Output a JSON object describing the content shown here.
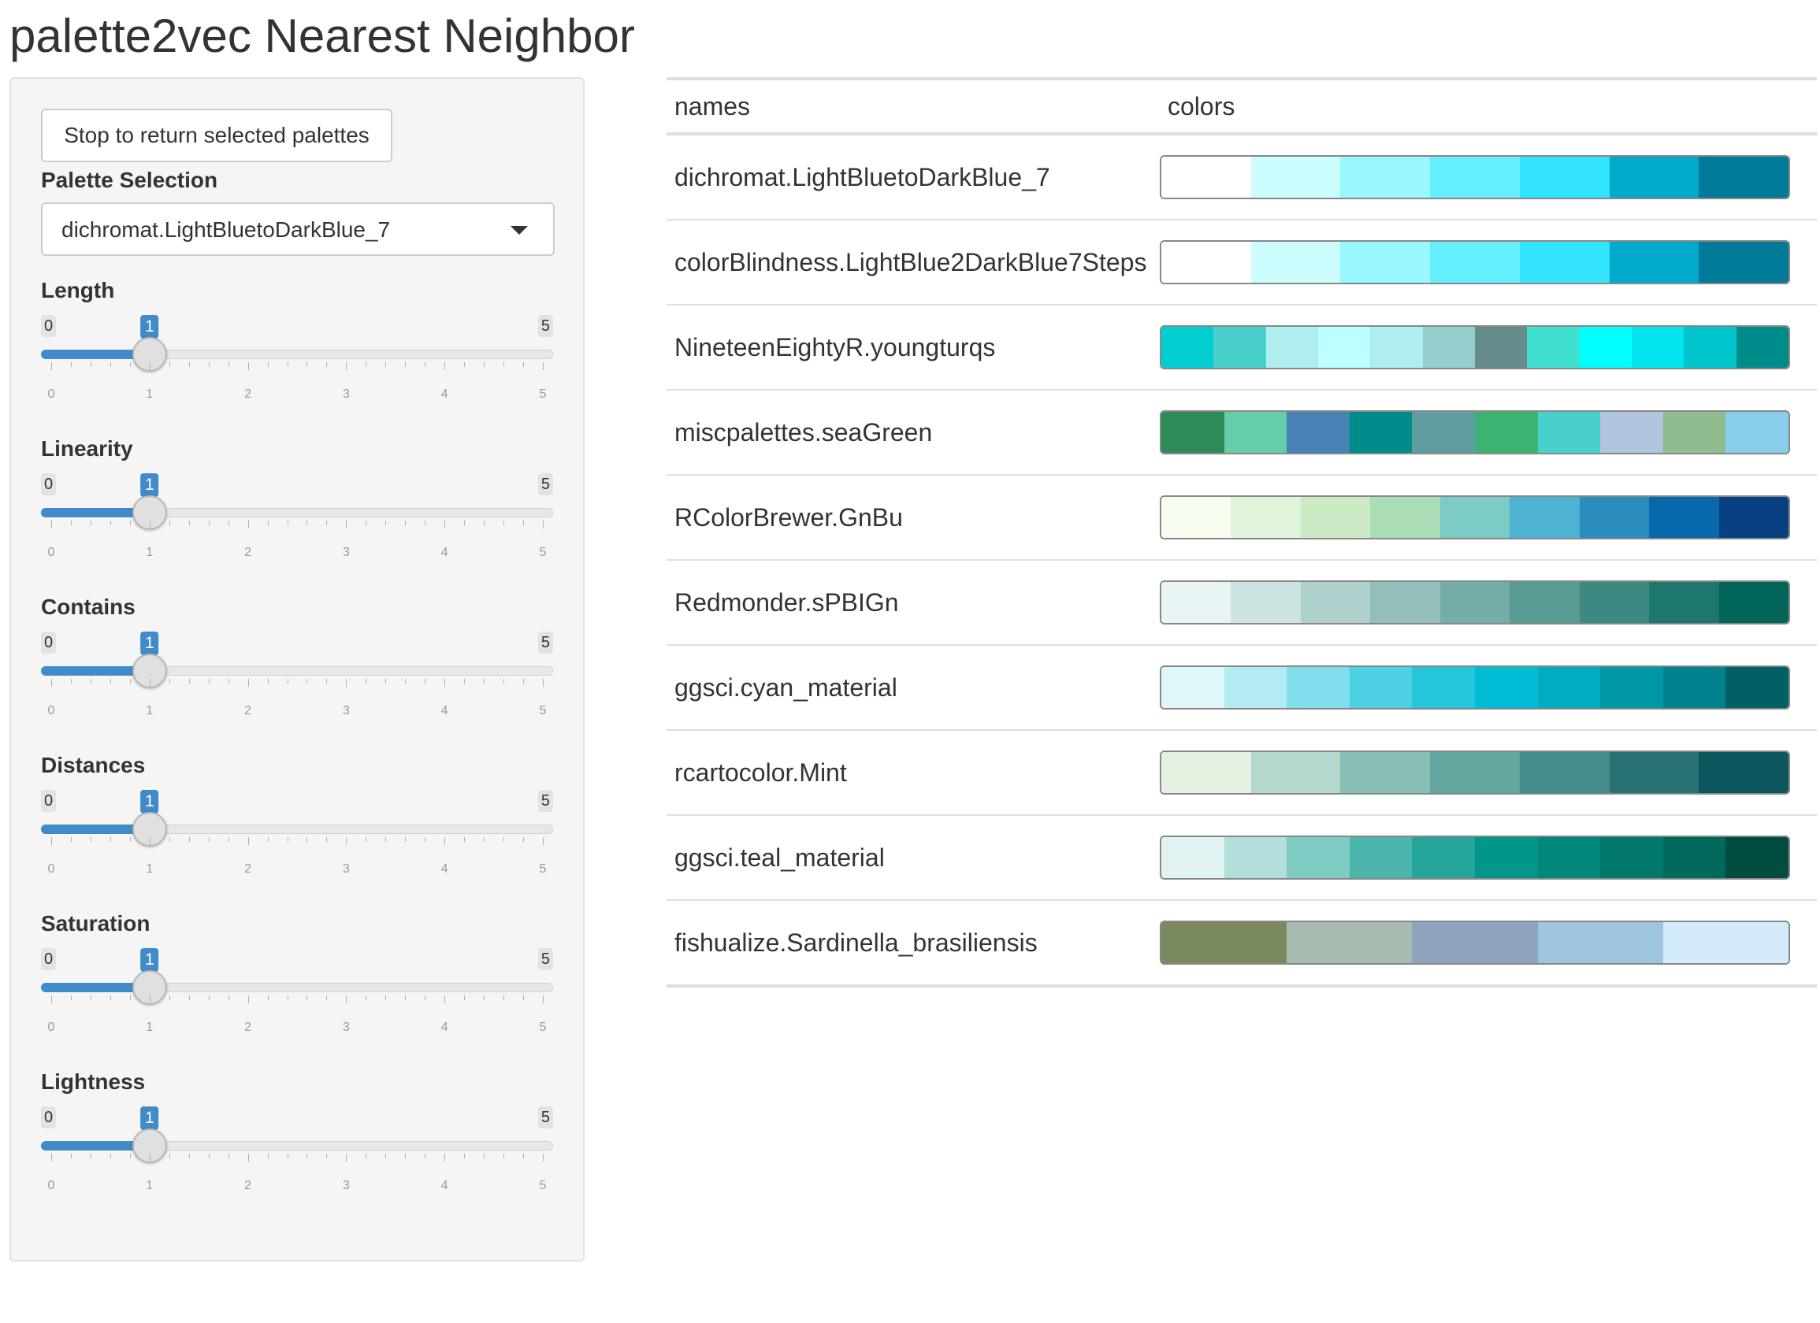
{
  "title": "palette2vec Nearest Neighbor",
  "sidebar": {
    "stop_button_label": "Stop to return selected palettes",
    "palette_selection": {
      "label": "Palette Selection",
      "selected": "dichromat.LightBluetoDarkBlue_7"
    },
    "sliders": [
      {
        "label": "Length",
        "min": 0,
        "max": 5,
        "value": 1,
        "tick_labels": [
          "0",
          "1",
          "2",
          "3",
          "4",
          "5"
        ]
      },
      {
        "label": "Linearity",
        "min": 0,
        "max": 5,
        "value": 1,
        "tick_labels": [
          "0",
          "1",
          "2",
          "3",
          "4",
          "5"
        ]
      },
      {
        "label": "Contains",
        "min": 0,
        "max": 5,
        "value": 1,
        "tick_labels": [
          "0",
          "1",
          "2",
          "3",
          "4",
          "5"
        ]
      },
      {
        "label": "Distances",
        "min": 0,
        "max": 5,
        "value": 1,
        "tick_labels": [
          "0",
          "1",
          "2",
          "3",
          "4",
          "5"
        ]
      },
      {
        "label": "Saturation",
        "min": 0,
        "max": 5,
        "value": 1,
        "tick_labels": [
          "0",
          "1",
          "2",
          "3",
          "4",
          "5"
        ]
      },
      {
        "label": "Lightness",
        "min": 0,
        "max": 5,
        "value": 1,
        "tick_labels": [
          "0",
          "1",
          "2",
          "3",
          "4",
          "5"
        ]
      }
    ]
  },
  "results": {
    "columns": [
      "names",
      "colors"
    ],
    "rows": [
      {
        "name": "dichromat.LightBluetoDarkBlue_7",
        "colors": [
          "#ffffff",
          "#ccfdff",
          "#99f8ff",
          "#66f0ff",
          "#33e4ff",
          "#00aacc",
          "#007a99"
        ]
      },
      {
        "name": "colorBlindness.LightBlue2DarkBlue7Steps",
        "colors": [
          "#ffffff",
          "#ccfdff",
          "#99f8ff",
          "#66f0ff",
          "#33e4ff",
          "#00aacc",
          "#007a99"
        ]
      },
      {
        "name": "NineteenEightyR.youngturqs",
        "colors": [
          "#00ced1",
          "#48d1cc",
          "#afeeee",
          "#bbffff",
          "#aeeeee",
          "#96cdcd",
          "#668b8b",
          "#40e0d0",
          "#00ffff",
          "#00e5ee",
          "#00c5cd",
          "#008b8b"
        ]
      },
      {
        "name": "miscpalettes.seaGreen",
        "colors": [
          "#2e8b57",
          "#66cdaa",
          "#4682b4",
          "#008b8b",
          "#5f9ea0",
          "#3cb371",
          "#48d1cc",
          "#b0c4de",
          "#8fbc8f",
          "#87ceeb"
        ]
      },
      {
        "name": "RColorBrewer.GnBu",
        "colors": [
          "#f7fcf0",
          "#e0f3db",
          "#ccebc5",
          "#a8ddb5",
          "#7bccc4",
          "#4eb3d3",
          "#2b8cbe",
          "#0868ac",
          "#084081"
        ]
      },
      {
        "name": "Redmonder.sPBIGn",
        "colors": [
          "#e9f5f4",
          "#cce3e1",
          "#afd1ce",
          "#92bfba",
          "#75ada7",
          "#589b93",
          "#3b8980",
          "#1e776c",
          "#01655a"
        ]
      },
      {
        "name": "ggsci.cyan_material",
        "colors": [
          "#e0f7fa",
          "#b2ebf2",
          "#80deea",
          "#4dd0e1",
          "#26c6da",
          "#00bcd4",
          "#00acc1",
          "#0097a7",
          "#00838f",
          "#006064"
        ]
      },
      {
        "name": "rcartocolor.Mint",
        "colors": [
          "#e4f1e1",
          "#b4d9cc",
          "#89c0b6",
          "#63a6a0",
          "#448c8a",
          "#287274",
          "#0d585f"
        ]
      },
      {
        "name": "ggsci.teal_material",
        "colors": [
          "#e0f2f1",
          "#b2dfdb",
          "#80cbc4",
          "#4db6ac",
          "#26a69a",
          "#009688",
          "#00897b",
          "#00796b",
          "#00695c",
          "#004d40"
        ]
      },
      {
        "name": "fishualize.Sardinella_brasiliensis",
        "colors": [
          "#7a8a5e",
          "#a8bbb0",
          "#8fa3bf",
          "#9fc5dd",
          "#d4ebfb"
        ]
      }
    ]
  }
}
